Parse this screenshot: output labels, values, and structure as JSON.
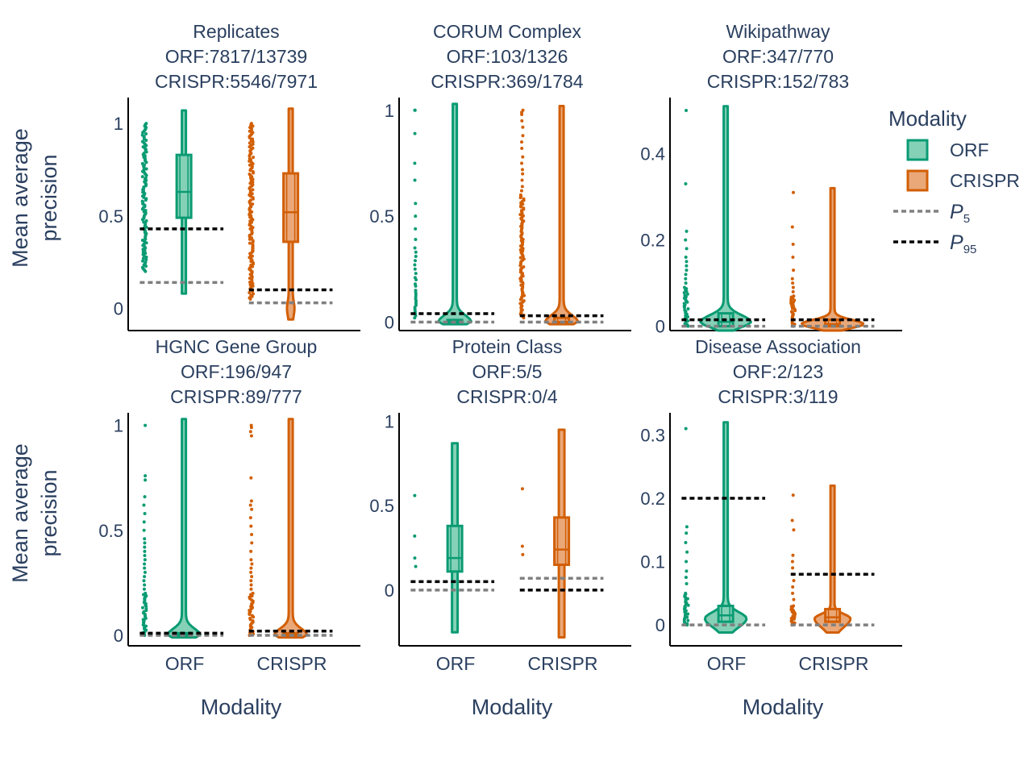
{
  "colors": {
    "orf": "#0a9b73",
    "orf_fill": "#85d1b7",
    "crispr": "#d25f06",
    "crispr_fill": "#eaa879",
    "p5": "#808080",
    "p95": "#000000",
    "text": "#2a3f5f"
  },
  "legend": {
    "title": "Modality",
    "items": [
      {
        "label": "ORF",
        "kind": "box",
        "modality": "orf"
      },
      {
        "label": "CRISPR",
        "kind": "box",
        "modality": "crispr"
      },
      {
        "label": "P",
        "sub": "5",
        "kind": "p5"
      },
      {
        "label": "P",
        "sub": "95",
        "kind": "p95"
      }
    ]
  },
  "chart_data": [
    {
      "type": "violin-box",
      "title": [
        "Replicates",
        "ORF:7817/13739",
        "CRISPR:5546/7971"
      ],
      "ylabel": [
        "Mean average",
        "precision"
      ],
      "xlabel": "",
      "categories": [
        "ORF",
        "CRISPR"
      ],
      "show_xticks": false,
      "ylim": [
        -0.12,
        1.14
      ],
      "yticks": [
        0,
        0.5,
        1
      ],
      "series": [
        {
          "modality": "orf",
          "min": 0.08,
          "q1": 0.49,
          "median": 0.63,
          "q3": 0.83,
          "max": 1.07,
          "violin_peak": 0,
          "violin_width": 0.06,
          "points": {
            "dense": [
              0.2,
              1.0
            ]
          },
          "p5": 0.14,
          "p95": 0.43
        },
        {
          "modality": "crispr",
          "min": -0.06,
          "q1": 0.36,
          "median": 0.52,
          "q3": 0.73,
          "max": 1.08,
          "violin_peak": 0,
          "violin_width": 0.06,
          "points": {
            "dense": [
              0.05,
              1.0
            ]
          },
          "p5": 0.03,
          "p95": 0.1
        }
      ]
    },
    {
      "type": "violin-box",
      "title": [
        "CORUM Complex",
        "ORF:103/1326",
        "CRISPR:369/1784"
      ],
      "ylabel": [],
      "xlabel": "",
      "categories": [
        "ORF",
        "CRISPR"
      ],
      "show_xticks": false,
      "ylim": [
        -0.04,
        1.06
      ],
      "yticks": [
        0,
        0.5,
        1
      ],
      "series": [
        {
          "modality": "orf",
          "min": -0.01,
          "q1": 0.0,
          "median": 0.0,
          "q3": 0.01,
          "max": 1.03,
          "violin_peak": 0.0,
          "violin_width": 0.5,
          "points": {
            "list": [
              1.0,
              1.0,
              0.89,
              0.75,
              0.67,
              0.56,
              0.5,
              0.44,
              0.39,
              0.35,
              0.33,
              0.31,
              0.29,
              0.27,
              0.25,
              0.23,
              0.21,
              0.2,
              0.18,
              0.17,
              0.15,
              0.14,
              0.13,
              0.12,
              0.11,
              0.1,
              0.09,
              0.08,
              0.07,
              0.06,
              0.05,
              0.04,
              0.03,
              0.02
            ]
          },
          "p5": 0.0,
          "p95": 0.04
        },
        {
          "modality": "crispr",
          "min": -0.01,
          "q1": 0.0,
          "median": 0.0,
          "q3": 0.02,
          "max": 1.02,
          "violin_peak": 0.0,
          "violin_width": 0.5,
          "points": {
            "dense": [
              0.02,
              0.6
            ],
            "list": [
              1.0,
              0.99,
              0.98,
              0.95,
              0.92,
              0.88,
              0.85,
              0.82,
              0.78,
              0.75,
              0.72,
              0.7,
              0.67,
              0.64,
              0.62
            ]
          },
          "p5": 0.0,
          "p95": 0.03
        }
      ]
    },
    {
      "type": "violin-box",
      "title": [
        "Wikipathway",
        "ORF:347/770",
        "CRISPR:152/783"
      ],
      "ylabel": [],
      "xlabel": "",
      "categories": [
        "ORF",
        "CRISPR"
      ],
      "show_xticks": false,
      "ylim": [
        -0.01,
        0.53
      ],
      "yticks": [
        0,
        0.2,
        0.4
      ],
      "series": [
        {
          "modality": "orf",
          "min": -0.01,
          "q1": 0.0,
          "median": 0.01,
          "q3": 0.03,
          "max": 0.51,
          "violin_peak": 0.01,
          "violin_width": 0.8,
          "points": {
            "dense": [
              0.0,
              0.09
            ],
            "list": [
              0.5,
              0.33,
              0.22,
              0.2,
              0.18,
              0.16,
              0.15,
              0.14,
              0.13,
              0.12,
              0.11,
              0.1
            ]
          },
          "p5": 0.0,
          "p95": 0.015
        },
        {
          "modality": "crispr",
          "min": -0.01,
          "q1": 0.0,
          "median": 0.005,
          "q3": 0.015,
          "max": 0.32,
          "violin_peak": 0.005,
          "violin_width": 1.0,
          "points": {
            "dense": [
              0.0,
              0.07
            ],
            "list": [
              0.31,
              0.23,
              0.19,
              0.16,
              0.13,
              0.11,
              0.1,
              0.09,
              0.08
            ]
          },
          "p5": 0.0,
          "p95": 0.015
        }
      ]
    },
    {
      "type": "violin-box",
      "title": [
        "HGNC Gene Group",
        "ORF:196/947",
        "CRISPR:89/777"
      ],
      "ylabel": [
        "Mean average",
        "precision"
      ],
      "xlabel": "Modality",
      "categories": [
        "ORF",
        "CRISPR"
      ],
      "show_xticks": true,
      "ylim": [
        -0.05,
        1.06
      ],
      "yticks": [
        0,
        0.5,
        1
      ],
      "series": [
        {
          "modality": "orf",
          "min": -0.01,
          "q1": 0.0,
          "median": 0.0,
          "q3": 0.01,
          "max": 1.03,
          "violin_peak": 0.0,
          "violin_width": 0.5,
          "points": {
            "dense": [
              0.0,
              0.2
            ],
            "list": [
              1.0,
              0.76,
              0.74,
              0.66,
              0.62,
              0.58,
              0.54,
              0.5,
              0.46,
              0.44,
              0.42,
              0.4,
              0.38,
              0.36,
              0.34,
              0.32,
              0.3,
              0.28,
              0.26,
              0.24,
              0.22
            ]
          },
          "p5": 0.0,
          "p95": 0.01
        },
        {
          "modality": "crispr",
          "min": -0.01,
          "q1": 0.0,
          "median": 0.0,
          "q3": 0.01,
          "max": 1.03,
          "violin_peak": 0.0,
          "violin_width": 0.5,
          "points": {
            "dense": [
              0.0,
              0.2
            ],
            "list": [
              1.0,
              0.99,
              0.97,
              0.95,
              0.75,
              0.64,
              0.62,
              0.6,
              0.56,
              0.52,
              0.48,
              0.44,
              0.4,
              0.36,
              0.34,
              0.32,
              0.3,
              0.28,
              0.26,
              0.24,
              0.22
            ]
          },
          "p5": 0.0,
          "p95": 0.02
        }
      ]
    },
    {
      "type": "violin-box",
      "title": [
        "Protein Class",
        "ORF:5/5",
        "CRISPR:0/4"
      ],
      "ylabel": [],
      "xlabel": "Modality",
      "categories": [
        "ORF",
        "CRISPR"
      ],
      "show_xticks": true,
      "ylim": [
        -0.33,
        1.05
      ],
      "yticks": [
        0,
        0.5,
        1
      ],
      "series": [
        {
          "modality": "orf",
          "min": -0.25,
          "q1": 0.11,
          "median": 0.19,
          "q3": 0.38,
          "max": 0.87,
          "violin_peak": null,
          "violin_width": 0.05,
          "points": {
            "list": [
              0.56,
              0.32,
              0.19,
              0.14
            ]
          },
          "p5": 0.0,
          "p95": 0.05
        },
        {
          "modality": "crispr",
          "min": -0.28,
          "q1": 0.15,
          "median": 0.24,
          "q3": 0.43,
          "max": 0.95,
          "violin_peak": null,
          "violin_width": 0.05,
          "points": {
            "list": [
              0.6,
              0.26,
              0.21
            ]
          },
          "p5": 0.07,
          "p95": 0.0
        }
      ]
    },
    {
      "type": "violin-box",
      "title": [
        "Disease Association",
        "ORF:2/123",
        "CRISPR:3/119"
      ],
      "ylabel": [],
      "xlabel": "Modality",
      "categories": [
        "ORF",
        "CRISPR"
      ],
      "show_xticks": true,
      "ylim": [
        -0.033,
        0.335
      ],
      "yticks": [
        0,
        0.1,
        0.2,
        0.3
      ],
      "series": [
        {
          "modality": "orf",
          "min": -0.012,
          "q1": 0.005,
          "median": 0.015,
          "q3": 0.03,
          "max": 0.32,
          "violin_peak": 0.01,
          "violin_width": 0.65,
          "points": {
            "dense": [
              0.0,
              0.05
            ],
            "list": [
              0.31,
              0.155,
              0.145,
              0.13,
              0.115,
              0.1,
              0.085,
              0.075,
              0.065
            ]
          },
          "p5": 0.0,
          "p95": 0.2
        },
        {
          "modality": "crispr",
          "min": -0.012,
          "q1": 0.005,
          "median": 0.012,
          "q3": 0.025,
          "max": 0.22,
          "violin_peak": 0.01,
          "violin_width": 0.55,
          "points": {
            "dense": [
              0.0,
              0.03
            ],
            "list": [
              0.205,
              0.165,
              0.15,
              0.11,
              0.1,
              0.09,
              0.08,
              0.07,
              0.06,
              0.05,
              0.04
            ]
          },
          "p5": 0.0,
          "p95": 0.08
        }
      ]
    }
  ]
}
